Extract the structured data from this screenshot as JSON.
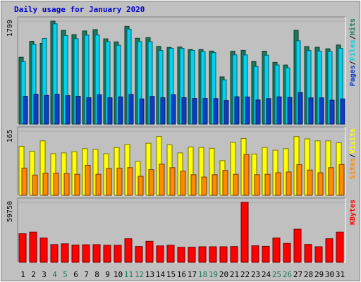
{
  "chart_data": {
    "type": "bar",
    "title": "Daily usage for January 2020",
    "categories": [
      "1",
      "2",
      "3",
      "4",
      "5",
      "6",
      "7",
      "8",
      "9",
      "10",
      "11",
      "12",
      "13",
      "14",
      "15",
      "16",
      "17",
      "18",
      "19",
      "20",
      "21",
      "22",
      "23",
      "24",
      "25",
      "26",
      "27",
      "28",
      "29",
      "30",
      "31"
    ],
    "weekend_days": [
      "4",
      "5",
      "11",
      "12",
      "18",
      "19",
      "25",
      "26"
    ],
    "colors": {
      "background": "#c0c0c0",
      "title": "#0000cc",
      "hits": "#1a7a5a",
      "files": "#00d2f0",
      "pages": "#0a3ec8",
      "visits": "#ffff00",
      "sites": "#ff8a00",
      "kbytes": "#ff0000",
      "weekday_label": "#000000",
      "weekend_label": "#1a7a5a"
    },
    "panels": [
      {
        "id": "hits_files_pages",
        "ymax_label": "1799",
        "ymax": 1799,
        "legend": [
          "Pages",
          "Files",
          "Hits"
        ],
        "series": [
          {
            "name": "Hits",
            "values": [
              1168,
              1448,
              1412,
              1799,
              1637,
              1564,
              1628,
              1651,
              1490,
              1437,
              1708,
              1499,
              1510,
              1358,
              1339,
              1347,
              1302,
              1303,
              1276,
              826,
              1274,
              1289,
              1093,
              1274,
              1079,
              1033,
              1639,
              1355,
              1343,
              1316,
              1382
            ]
          },
          {
            "name": "Files",
            "values": [
              1093,
              1394,
              1497,
              1753,
              1547,
              1493,
              1554,
              1557,
              1439,
              1377,
              1658,
              1441,
              1440,
              1287,
              1323,
              1324,
              1289,
              1268,
              1250,
              774,
              1210,
              1209,
              1008,
              1204,
              1034,
              983,
              1457,
              1287,
              1277,
              1268,
              1325
            ]
          },
          {
            "name": "Pages",
            "values": [
              485,
              522,
              501,
              521,
              498,
              485,
              461,
              513,
              460,
              476,
              519,
              440,
              483,
              461,
              513,
              462,
              450,
              448,
              446,
              412,
              477,
              473,
              421,
              446,
              476,
              466,
              552,
              458,
              459,
              418,
              440
            ]
          }
        ]
      },
      {
        "id": "visits_sites",
        "ymax_label": "165",
        "ymax": 165,
        "legend": [
          "Sites",
          "Visits"
        ],
        "series": [
          {
            "name": "Visits",
            "values": [
              126,
              113,
              140,
              107,
              109,
              112,
              120,
              118,
              107,
              123,
              131,
              87,
              134,
              151,
              130,
              109,
              124,
              123,
              121,
              89,
              136,
              146,
              106,
              123,
              116,
              120,
              151,
              145,
              140,
              140,
              135
            ]
          },
          {
            "name": "Sites",
            "values": [
              70,
              52,
              57,
              57,
              56,
              54,
              77,
              54,
              69,
              70,
              71,
              49,
              66,
              80,
              71,
              62,
              53,
              47,
              53,
              64,
              54,
              105,
              53,
              54,
              58,
              60,
              79,
              65,
              58,
              71,
              79
            ]
          }
        ]
      },
      {
        "id": "kbytes",
        "ymax_label": "59750",
        "ymax": 59750,
        "legend": [
          "KBytes"
        ],
        "series": [
          {
            "name": "KBytes",
            "values": [
              28470,
              30120,
              24260,
              17640,
              18390,
              17190,
              17450,
              17560,
              16970,
              16970,
              23460,
              15670,
              20850,
              16300,
              16980,
              15000,
              15000,
              15450,
              15450,
              15450,
              15670,
              59750,
              16460,
              15900,
              24260,
              18830,
              32940,
              17780,
              15450,
              23460,
              30120
            ]
          }
        ]
      }
    ]
  }
}
